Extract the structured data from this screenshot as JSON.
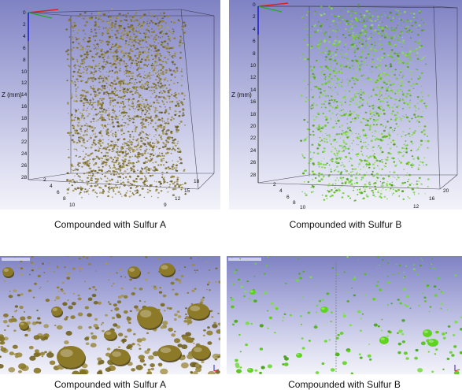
{
  "panels": [
    {
      "caption": "Compounded with Sulfur A",
      "axis_label": "Z (mm)",
      "z_ticks": [
        "0",
        "2",
        "4",
        "6",
        "8",
        "10",
        "12",
        "14",
        "16",
        "18",
        "20",
        "22",
        "24",
        "26",
        "28"
      ],
      "bottom_left_ticks": [
        "2",
        "4",
        "6",
        "8",
        "10"
      ],
      "bottom_right_ticks": [
        "18",
        "15",
        "12",
        "9"
      ],
      "particle_color": "#8b7a2e"
    },
    {
      "caption": "Compounded with Sulfur B",
      "axis_label": "Z (mm)",
      "z_ticks": [
        "0",
        "2",
        "4",
        "6",
        "8",
        "10",
        "12",
        "14",
        "16",
        "18",
        "20",
        "22",
        "24",
        "26",
        "28"
      ],
      "bottom_left_ticks": [
        "2",
        "4",
        "6",
        "8",
        "10"
      ],
      "bottom_right_ticks": [
        "20",
        "16",
        "12"
      ],
      "particle_color": "#6fcf2a"
    },
    {
      "caption": "Compounded with Sulfur A",
      "particle_color": "#8d7a28"
    },
    {
      "caption": "Compounded with Sulfur B",
      "particle_color": "#5fd41f"
    }
  ]
}
